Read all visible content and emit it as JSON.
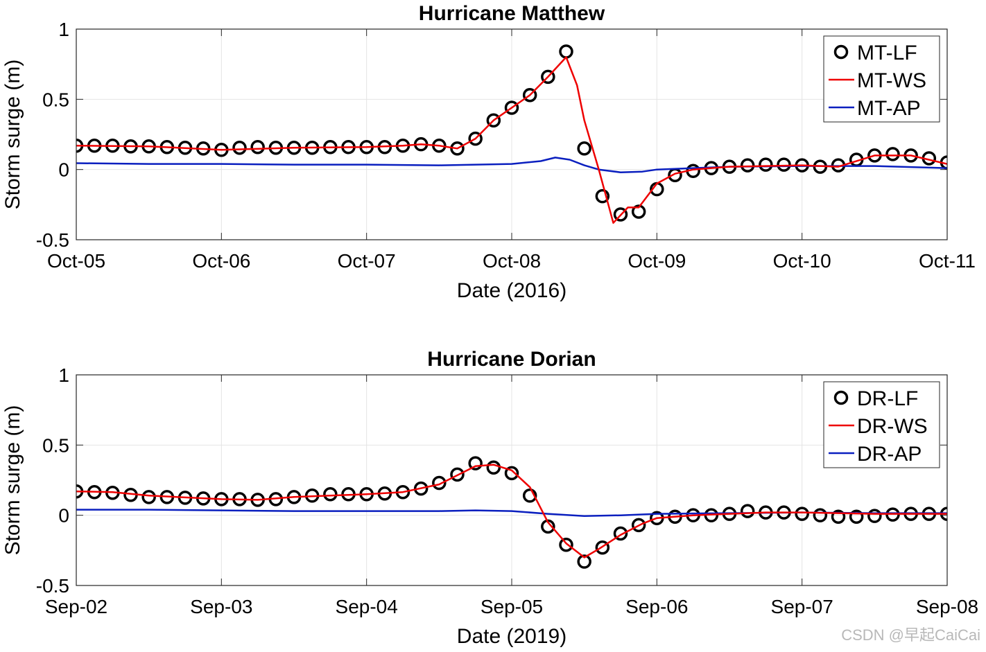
{
  "watermark": "CSDN @早起CaiCai",
  "chart_data": [
    {
      "type": "line",
      "title": "Hurricane Matthew",
      "xlabel": "Date (2016)",
      "ylabel": "Storm surge (m)",
      "xlim": [
        "Oct-05",
        "Oct-11"
      ],
      "xticks": [
        "Oct-05",
        "Oct-06",
        "Oct-07",
        "Oct-08",
        "Oct-09",
        "Oct-10",
        "Oct-11"
      ],
      "ylim": [
        -0.5,
        1
      ],
      "yticks": [
        "-0.5",
        "0",
        "0.5",
        "1"
      ],
      "grid": true,
      "legend_position": "top-right",
      "series": [
        {
          "name": "MT-LF",
          "style": "markers",
          "color": "#000000",
          "x": [
            0,
            0.125,
            0.25,
            0.375,
            0.5,
            0.625,
            0.75,
            0.875,
            1,
            1.125,
            1.25,
            1.375,
            1.5,
            1.625,
            1.75,
            1.875,
            2,
            2.125,
            2.25,
            2.375,
            2.5,
            2.625,
            2.75,
            2.875,
            3,
            3.125,
            3.25,
            3.375,
            3.5,
            3.625,
            3.75,
            3.875,
            4,
            4.125,
            4.25,
            4.375,
            4.5,
            4.625,
            4.75,
            4.875,
            5,
            5.125,
            5.25,
            5.375,
            5.5,
            5.625,
            5.75,
            5.875,
            6
          ],
          "values": [
            0.17,
            0.17,
            0.17,
            0.165,
            0.165,
            0.16,
            0.155,
            0.15,
            0.14,
            0.155,
            0.16,
            0.155,
            0.155,
            0.155,
            0.16,
            0.16,
            0.16,
            0.16,
            0.17,
            0.18,
            0.17,
            0.15,
            0.22,
            0.35,
            0.44,
            0.53,
            0.66,
            0.84,
            0.15,
            -0.19,
            -0.32,
            -0.3,
            -0.14,
            -0.04,
            -0.01,
            0.01,
            0.02,
            0.03,
            0.035,
            0.035,
            0.03,
            0.02,
            0.03,
            0.07,
            0.1,
            0.11,
            0.1,
            0.08,
            0.05
          ]
        },
        {
          "name": "MT-WS",
          "style": "line",
          "color": "#ee0000",
          "x": [
            0,
            0.5,
            1,
            1.5,
            2,
            2.25,
            2.375,
            2.5,
            2.625,
            2.75,
            2.875,
            3,
            3.125,
            3.25,
            3.375,
            3.45,
            3.5,
            3.6,
            3.7,
            3.8,
            3.875,
            4,
            4.125,
            4.25,
            4.5,
            5,
            5.25,
            5.5,
            5.75,
            6
          ],
          "values": [
            0.17,
            0.165,
            0.14,
            0.155,
            0.16,
            0.17,
            0.18,
            0.17,
            0.15,
            0.22,
            0.35,
            0.44,
            0.53,
            0.66,
            0.8,
            0.6,
            0.35,
            0.0,
            -0.38,
            -0.27,
            -0.27,
            -0.1,
            -0.03,
            0.0,
            0.02,
            0.03,
            0.02,
            0.1,
            0.1,
            0.04
          ]
        },
        {
          "name": "MT-AP",
          "style": "line",
          "color": "#0a1fbf",
          "x": [
            0,
            0.5,
            1,
            1.5,
            2,
            2.5,
            3,
            3.2,
            3.3,
            3.4,
            3.5,
            3.6,
            3.75,
            3.9,
            4,
            4.25,
            4.5,
            5,
            5.5,
            6
          ],
          "values": [
            0.045,
            0.04,
            0.04,
            0.035,
            0.035,
            0.03,
            0.04,
            0.06,
            0.085,
            0.07,
            0.03,
            0.0,
            -0.02,
            -0.015,
            0.0,
            0.01,
            0.02,
            0.025,
            0.025,
            0.01
          ]
        }
      ]
    },
    {
      "type": "line",
      "title": "Hurricane Dorian",
      "xlabel": "Date (2019)",
      "ylabel": "Storm surge (m)",
      "xlim": [
        "Sep-02",
        "Sep-08"
      ],
      "xticks": [
        "Sep-02",
        "Sep-03",
        "Sep-04",
        "Sep-05",
        "Sep-06",
        "Sep-07",
        "Sep-08"
      ],
      "ylim": [
        -0.5,
        1
      ],
      "yticks": [
        "-0.5",
        "0",
        "0.5",
        "1"
      ],
      "grid": true,
      "legend_position": "top-right",
      "series": [
        {
          "name": "DR-LF",
          "style": "markers",
          "color": "#000000",
          "x": [
            0,
            0.125,
            0.25,
            0.375,
            0.5,
            0.625,
            0.75,
            0.875,
            1,
            1.125,
            1.25,
            1.375,
            1.5,
            1.625,
            1.75,
            1.875,
            2,
            2.125,
            2.25,
            2.375,
            2.5,
            2.625,
            2.75,
            2.875,
            3,
            3.125,
            3.25,
            3.375,
            3.5,
            3.625,
            3.75,
            3.875,
            4,
            4.125,
            4.25,
            4.375,
            4.5,
            4.625,
            4.75,
            4.875,
            5,
            5.125,
            5.25,
            5.375,
            5.5,
            5.625,
            5.75,
            5.875,
            6
          ],
          "values": [
            0.17,
            0.165,
            0.16,
            0.145,
            0.13,
            0.13,
            0.125,
            0.12,
            0.115,
            0.115,
            0.11,
            0.115,
            0.13,
            0.14,
            0.15,
            0.15,
            0.15,
            0.155,
            0.165,
            0.19,
            0.23,
            0.29,
            0.37,
            0.34,
            0.3,
            0.14,
            -0.08,
            -0.21,
            -0.33,
            -0.23,
            -0.13,
            -0.07,
            -0.02,
            -0.01,
            0.0,
            0.0,
            0.01,
            0.03,
            0.02,
            0.02,
            0.01,
            0.0,
            -0.01,
            -0.01,
            -0.005,
            0.005,
            0.01,
            0.01,
            0.01
          ]
        },
        {
          "name": "DR-WS",
          "style": "line",
          "color": "#ee0000",
          "x": [
            0,
            0.25,
            0.5,
            1,
            1.25,
            1.5,
            2,
            2.25,
            2.5,
            2.75,
            2.875,
            3,
            3.125,
            3.25,
            3.375,
            3.5,
            3.6,
            3.75,
            3.9,
            4,
            4.25,
            4.5,
            4.75,
            5,
            5.5,
            6
          ],
          "values": [
            0.17,
            0.165,
            0.14,
            0.115,
            0.11,
            0.13,
            0.15,
            0.165,
            0.22,
            0.35,
            0.36,
            0.32,
            0.2,
            -0.05,
            -0.2,
            -0.3,
            -0.24,
            -0.14,
            -0.06,
            -0.02,
            0.0,
            0.01,
            0.02,
            0.02,
            0.01,
            0.01
          ]
        },
        {
          "name": "DR-AP",
          "style": "line",
          "color": "#0a1fbf",
          "x": [
            0,
            0.5,
            1,
            1.5,
            2,
            2.5,
            2.75,
            3,
            3.25,
            3.5,
            3.75,
            4,
            4.5,
            5,
            5.5,
            6
          ],
          "values": [
            0.04,
            0.04,
            0.035,
            0.03,
            0.03,
            0.03,
            0.035,
            0.03,
            0.01,
            -0.005,
            0.0,
            0.01,
            0.015,
            0.02,
            0.015,
            0.015
          ]
        }
      ]
    }
  ]
}
